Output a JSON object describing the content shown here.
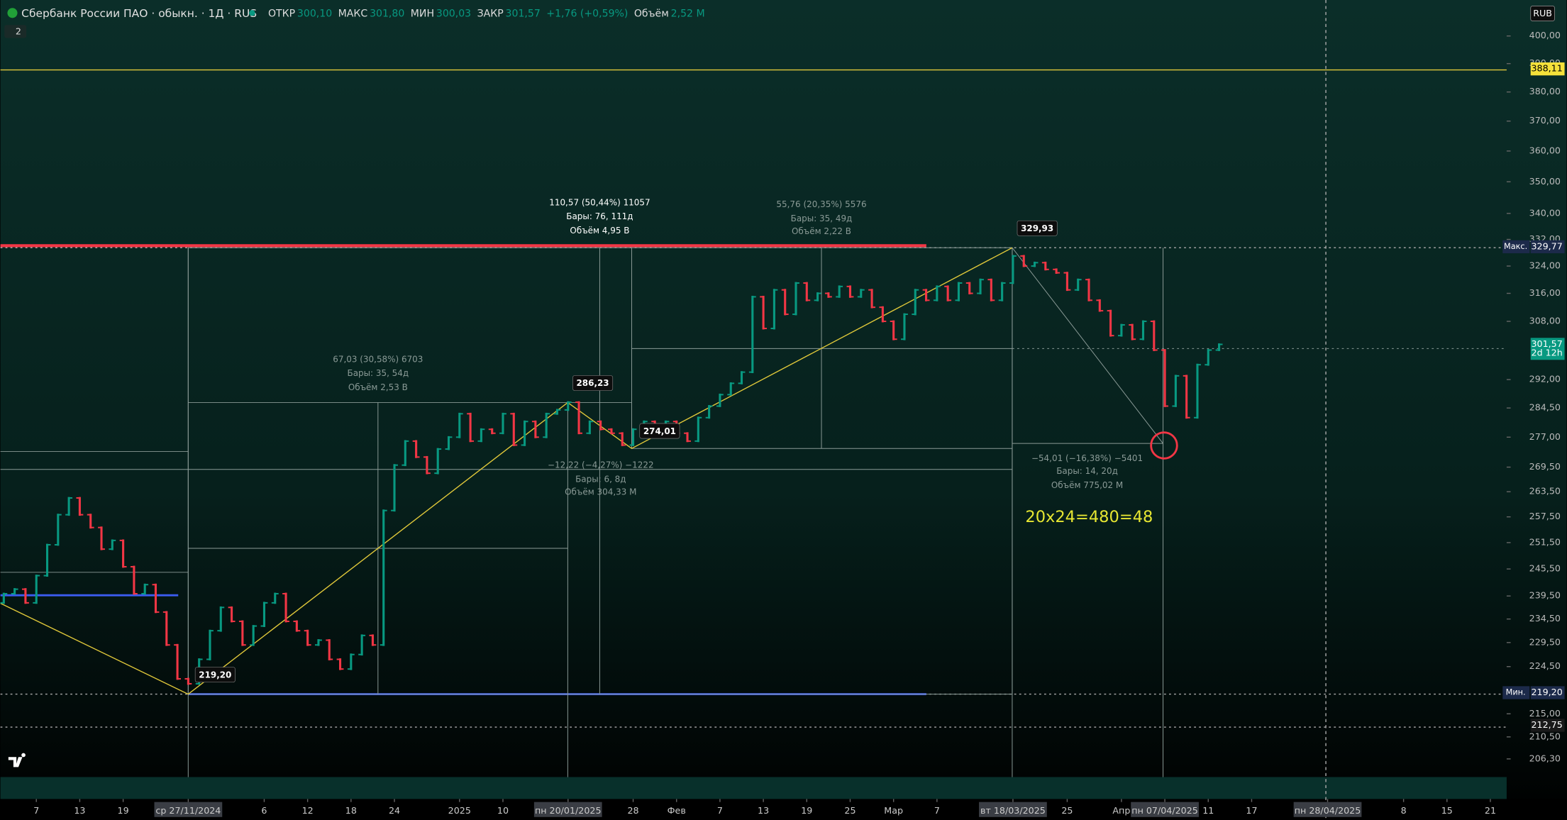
{
  "header": {
    "symbol": "Сбербанк России ПАО · обыкн. · 1Д · RUS",
    "fields": [
      {
        "label": "ОТКР",
        "value": "300,10"
      },
      {
        "label": "МАКС",
        "value": "301,80"
      },
      {
        "label": "МИН",
        "value": "300,03"
      },
      {
        "label": "ЗАКР",
        "value": "301,57"
      }
    ],
    "change": "+1,76 (+0,59%)",
    "volume_label": "Объём",
    "volume": "2,52 M",
    "indicators_badge": "2",
    "currency": "RUB"
  },
  "chart_data": {
    "type": "ohlc",
    "log": true,
    "up_color": "#089981",
    "down_color": "#f23645",
    "open": [
      238,
      240,
      241,
      238,
      244,
      251,
      258,
      262,
      258,
      255,
      250,
      252,
      246,
      240,
      242,
      236,
      229,
      222,
      221,
      226,
      232,
      237,
      234,
      229,
      233,
      238,
      240,
      234,
      232,
      229,
      230,
      226,
      224,
      227,
      231,
      229,
      259,
      270,
      276,
      272,
      268,
      274,
      277,
      283,
      276,
      279,
      278,
      283,
      275,
      281,
      277,
      283,
      284,
      286,
      278,
      281,
      279,
      278,
      275,
      279,
      281,
      277,
      281,
      278,
      276,
      282,
      285,
      288,
      291,
      294,
      315,
      306,
      317,
      310,
      319,
      314,
      316,
      315,
      318,
      315,
      317,
      312,
      308,
      303,
      310,
      317,
      314,
      318,
      314,
      319,
      316,
      320,
      314,
      319,
      327,
      324,
      325,
      323,
      322,
      317,
      320,
      314,
      311,
      304,
      307,
      303,
      308,
      300,
      285,
      293,
      282,
      296,
      300
    ],
    "close": [
      240,
      241,
      238,
      244,
      251,
      258,
      262,
      258,
      255,
      250,
      252,
      246,
      240,
      242,
      236,
      229,
      222,
      221,
      226,
      232,
      237,
      234,
      229,
      233,
      238,
      240,
      234,
      232,
      229,
      230,
      226,
      224,
      227,
      231,
      229,
      259,
      270,
      276,
      272,
      268,
      274,
      277,
      283,
      276,
      279,
      278,
      283,
      275,
      281,
      277,
      283,
      284,
      286,
      278,
      281,
      279,
      278,
      275,
      279,
      281,
      277,
      281,
      278,
      276,
      282,
      285,
      288,
      291,
      294,
      315,
      306,
      317,
      310,
      319,
      314,
      316,
      315,
      318,
      315,
      317,
      312,
      308,
      303,
      310,
      317,
      314,
      318,
      314,
      319,
      316,
      320,
      314,
      319,
      327,
      324,
      325,
      323,
      322,
      317,
      320,
      314,
      311,
      304,
      307,
      303,
      308,
      300,
      285,
      293,
      282,
      296,
      300,
      301.57
    ],
    "xlim": [
      -0.31,
      138.5
    ],
    "ylim": [
      202.9,
      413.4
    ],
    "yticks": [
      {
        "value": 400,
        "label": "400,00"
      },
      {
        "value": 390,
        "label": "390,00"
      },
      {
        "value": 380,
        "label": "380,00"
      },
      {
        "value": 370,
        "label": "370,00"
      },
      {
        "value": 360,
        "label": "360,00"
      },
      {
        "value": 350,
        "label": "350,00"
      },
      {
        "value": 340,
        "label": "340,00"
      },
      {
        "value": 332,
        "label": "332,00"
      },
      {
        "value": 324,
        "label": "324,00"
      },
      {
        "value": 316,
        "label": "316,00"
      },
      {
        "value": 308,
        "label": "308,00"
      },
      {
        "value": 292,
        "label": "292,00"
      },
      {
        "value": 284.5,
        "label": "284,50"
      },
      {
        "value": 277,
        "label": "277,00"
      },
      {
        "value": 269.5,
        "label": "269,50"
      },
      {
        "value": 263.5,
        "label": "263,50"
      },
      {
        "value": 257.5,
        "label": "257,50"
      },
      {
        "value": 251.5,
        "label": "251,50"
      },
      {
        "value": 245.5,
        "label": "245,50"
      },
      {
        "value": 239.5,
        "label": "239,50"
      },
      {
        "value": 234.5,
        "label": "234,50"
      },
      {
        "value": 229.5,
        "label": "229,50"
      },
      {
        "value": 224.5,
        "label": "224,50"
      },
      {
        "value": 215,
        "label": "215,00"
      },
      {
        "value": 210.5,
        "label": "210,50"
      },
      {
        "value": 206.3,
        "label": "206,30"
      }
    ],
    "xticks": [
      {
        "value": 3,
        "label": "7"
      },
      {
        "value": 7,
        "label": "13"
      },
      {
        "value": 11,
        "label": "19"
      },
      {
        "value": 17,
        "label": "ср 27/11/2024"
      },
      {
        "value": 24,
        "label": "6"
      },
      {
        "value": 28,
        "label": "12"
      },
      {
        "value": 32,
        "label": "18"
      },
      {
        "value": 36,
        "label": "24"
      },
      {
        "value": 42,
        "label": "2025"
      },
      {
        "value": 46,
        "label": "10"
      },
      {
        "value": 52,
        "label": "пн 20/01/2025"
      },
      {
        "value": 58,
        "label": "28"
      },
      {
        "value": 62,
        "label": "Фев"
      },
      {
        "value": 66,
        "label": "7"
      },
      {
        "value": 70,
        "label": "13"
      },
      {
        "value": 74,
        "label": "19"
      },
      {
        "value": 78,
        "label": "25"
      },
      {
        "value": 82,
        "label": "Мар"
      },
      {
        "value": 86,
        "label": "7"
      },
      {
        "value": 93,
        "label": "вт 18/03/2025"
      },
      {
        "value": 98,
        "label": "25"
      },
      {
        "value": 103,
        "label": "Апр"
      },
      {
        "value": 107,
        "label": "пн 07/04/2025"
      },
      {
        "value": 111,
        "label": "11"
      },
      {
        "value": 115,
        "label": "17"
      },
      {
        "value": 122,
        "label": "пн 28/04/2025"
      },
      {
        "value": 129,
        "label": "8"
      },
      {
        "value": 133,
        "label": "15"
      },
      {
        "value": 137,
        "label": "21"
      }
    ],
    "price_labels": [
      {
        "value": 388.11,
        "label": "388,11",
        "color": "#f5e13a"
      },
      {
        "value": 329.77,
        "label": "329,77",
        "tag": "Макс.",
        "color": "#1c2a4a"
      },
      {
        "value": 301.57,
        "label": "301,57",
        "sub": "2d 12h",
        "color": "#089981"
      },
      {
        "value": 219.2,
        "label": "219,20",
        "tag": "Мин.",
        "color": "#1c2a4a"
      },
      {
        "value": 212.75,
        "label": "212,75",
        "color": "#1a1a1a"
      }
    ]
  },
  "annotations": {
    "measure_total": [
      "110,57 (50,44%) 11057",
      "Бары: 76, 111д",
      "Объём 4,95 B"
    ],
    "measure_up2": [
      "55,76 (20,35%) 5576",
      "Бары: 35, 49д",
      "Объём 2,22 B"
    ],
    "measure_up1": [
      "67,03 (30,58%) 6703",
      "Бары: 35, 54д",
      "Объём 2,53 B"
    ],
    "measure_dip": [
      "−12,22 (−4,27%) −1222",
      "Бары: 6, 8д",
      "Объём 304,33 M"
    ],
    "measure_down": [
      "−54,01 (−16,38%) −5401",
      "Бары: 14, 20д",
      "Объём 775,02 M"
    ],
    "tags": [
      "329,93",
      "286,23",
      "274,01",
      "219,20"
    ],
    "note": "20x24=480=48"
  }
}
